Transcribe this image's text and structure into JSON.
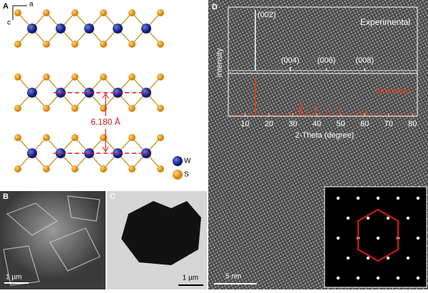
{
  "panels": {
    "a": {
      "label": "A",
      "axis_a": "a",
      "axis_c": "c",
      "spacing": "6.180 Å",
      "legend": [
        "W",
        "S"
      ]
    },
    "b": {
      "label": "B",
      "scale_bar": "1 µm"
    },
    "c": {
      "label": "C",
      "scale_bar": "1 µm"
    },
    "d": {
      "label": "D",
      "scale_bar": "5 nm"
    }
  },
  "xrd": {
    "ylabel": "Intensity",
    "xlabel": "2-Theta (degree)",
    "xlim": [
      3,
      82
    ],
    "xticks": [
      10,
      20,
      30,
      40,
      50,
      60,
      70,
      80
    ],
    "experimental": {
      "name": "Experimental",
      "color": "#ffffff",
      "peaks": [
        14.3,
        28.9,
        44.0,
        60.0
      ],
      "heights": [
        100,
        6,
        4,
        4
      ]
    },
    "reflections": [
      {
        "label": "(002)",
        "x": 14.3
      },
      {
        "label": "(004)",
        "x": 28.9
      },
      {
        "label": "(006)",
        "x": 44.0
      },
      {
        "label": "(008)",
        "x": 60.0
      }
    ],
    "simulated": {
      "name": "Simulated",
      "color": "#e8401c",
      "peaks": [
        14.3,
        28.9,
        32.8,
        33.6,
        35.9,
        39.6,
        44.0,
        49.8,
        58.4,
        60.5
      ],
      "heights": [
        100,
        8,
        25,
        35,
        15,
        30,
        12,
        25,
        10,
        15
      ]
    }
  }
}
